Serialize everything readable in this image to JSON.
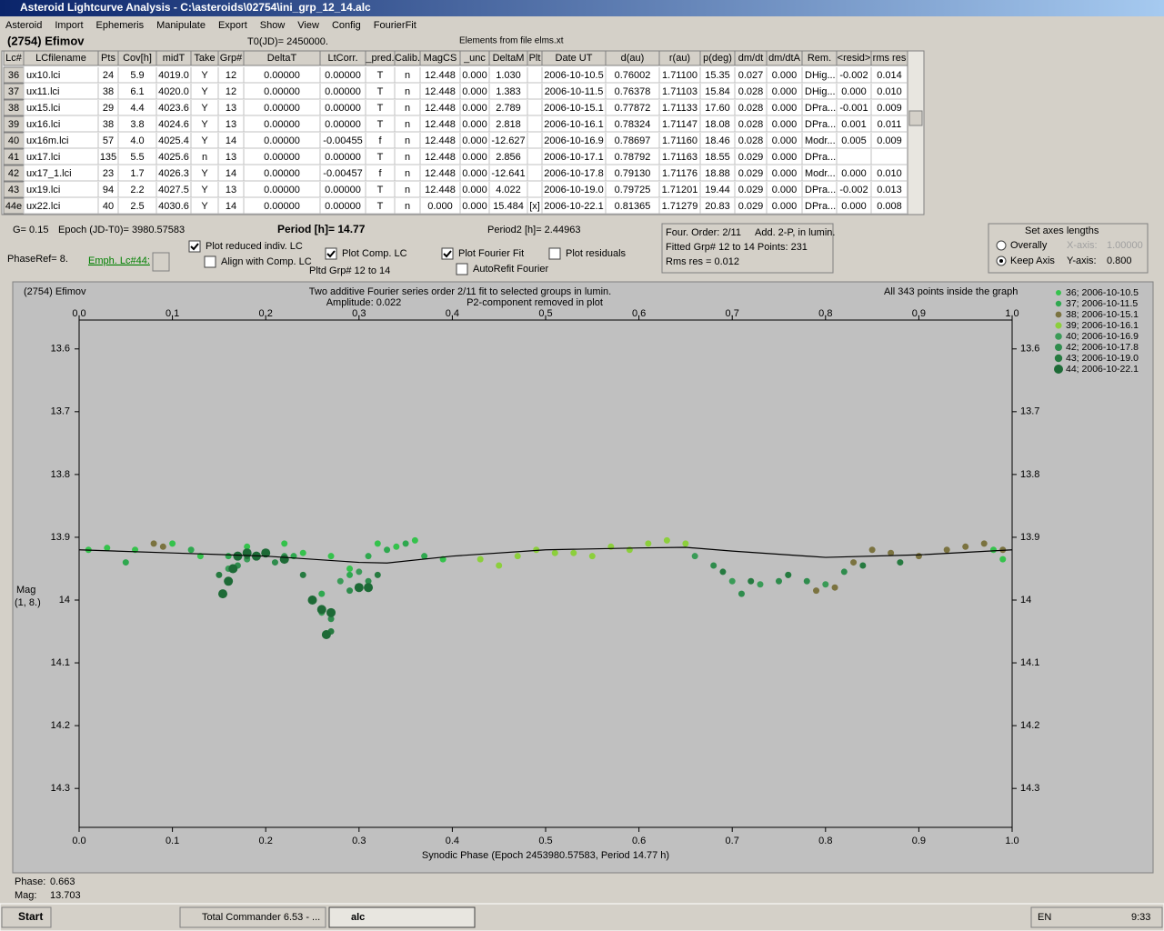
{
  "window": {
    "title": "Asteroid Lightcurve Analysis - C:\\asteroids\\02754\\ini_grp_12_14.alc"
  },
  "menu": [
    "Asteroid",
    "Import",
    "Ephemeris",
    "Manipulate",
    "Export",
    "Show",
    "View",
    "Config",
    "FourierFit"
  ],
  "header": {
    "object": "(2754) Efimov",
    "t0": "T0(JD)= 2450000.",
    "elements": "Elements from file elms.xt"
  },
  "table": {
    "columns": [
      "Lc#",
      "LCfilename",
      "Pts",
      "Cov[h]",
      "midT",
      "Take",
      "Grp#",
      "DeltaT",
      "LtCorr.",
      "_pred.",
      "Calib.",
      "MagCS",
      "_unc",
      "DeltaM",
      "Plt",
      "Date UT",
      "d(au)",
      "r(au)",
      "p(deg)",
      "dm/dt",
      "dm/dtA",
      "Rem.",
      "<resid>",
      "rms res"
    ],
    "rows": [
      [
        "36",
        "ux10.lci",
        "24",
        "5.9",
        "4019.0",
        "Y",
        "12",
        "0.00000",
        "0.00000",
        "T",
        "n",
        "12.448",
        "0.000",
        "1.030",
        null,
        "2006-10-10.5",
        "0.76002",
        "1.71100",
        "15.35",
        "0.027",
        "0.000",
        "DHig...",
        "-0.002",
        "0.014"
      ],
      [
        "37",
        "ux11.lci",
        "38",
        "6.1",
        "4020.0",
        "Y",
        "12",
        "0.00000",
        "0.00000",
        "T",
        "n",
        "12.448",
        "0.000",
        "1.383",
        null,
        "2006-10-11.5",
        "0.76378",
        "1.71103",
        "15.84",
        "0.028",
        "0.000",
        "DHig...",
        "0.000",
        "0.010"
      ],
      [
        "38",
        "ux15.lci",
        "29",
        "4.4",
        "4023.6",
        "Y",
        "13",
        "0.00000",
        "0.00000",
        "T",
        "n",
        "12.448",
        "0.000",
        "2.789",
        null,
        "2006-10-15.1",
        "0.77872",
        "1.71133",
        "17.60",
        "0.028",
        "0.000",
        "DPra...",
        "-0.001",
        "0.009"
      ],
      [
        "39",
        "ux16.lci",
        "38",
        "3.8",
        "4024.6",
        "Y",
        "13",
        "0.00000",
        "0.00000",
        "T",
        "n",
        "12.448",
        "0.000",
        "2.818",
        null,
        "2006-10-16.1",
        "0.78324",
        "1.71147",
        "18.08",
        "0.028",
        "0.000",
        "DPra...",
        "0.001",
        "0.011"
      ],
      [
        "40",
        "ux16m.lci",
        "57",
        "4.0",
        "4025.4",
        "Y",
        "14",
        "0.00000",
        "-0.00455",
        "f",
        "n",
        "12.448",
        "0.000",
        "-12.627",
        null,
        "2006-10-16.9",
        "0.78697",
        "1.71160",
        "18.46",
        "0.028",
        "0.000",
        "Modr...",
        "0.005",
        "0.009"
      ],
      [
        "41",
        "ux17.lci",
        "135",
        "5.5",
        "4025.6",
        "n",
        "13",
        "0.00000",
        "0.00000",
        "T",
        "n",
        "12.448",
        "0.000",
        "2.856",
        null,
        "2006-10-17.1",
        "0.78792",
        "1.71163",
        "18.55",
        "0.029",
        "0.000",
        "DPra...",
        null,
        null
      ],
      [
        "42",
        "ux17_1.lci",
        "23",
        "1.7",
        "4026.3",
        "Y",
        "14",
        "0.00000",
        "-0.00457",
        "f",
        "n",
        "12.448",
        "0.000",
        "-12.641",
        null,
        "2006-10-17.8",
        "0.79130",
        "1.71176",
        "18.88",
        "0.029",
        "0.000",
        "Modr...",
        "0.000",
        "0.010"
      ],
      [
        "43",
        "ux19.lci",
        "94",
        "2.2",
        "4027.5",
        "Y",
        "13",
        "0.00000",
        "0.00000",
        "T",
        "n",
        "12.448",
        "0.000",
        "4.022",
        null,
        "2006-10-19.0",
        "0.79725",
        "1.71201",
        "19.44",
        "0.029",
        "0.000",
        "DPra...",
        "-0.002",
        "0.013"
      ],
      [
        "44e",
        "ux22.lci",
        "40",
        "2.5",
        "4030.6",
        "Y",
        "14",
        "0.00000",
        "0.00000",
        "T",
        "n",
        "0.000",
        "0.000",
        "15.484",
        "[x]",
        "2006-10-22.1",
        "0.81365",
        "1.71279",
        "20.83",
        "0.029",
        "0.000",
        "DPra...",
        "0.000",
        "0.008"
      ]
    ]
  },
  "info": {
    "g": "G= 0.15",
    "epoch": "Epoch (JD-T0)= 3980.57583",
    "period": "Period [h]= 14.77",
    "period2": "Period2 [h]= 2.44963",
    "phaseref": "PhaseRef= 8.",
    "emph": "Emph. Lc#44:",
    "pltd": "Pltd Grp#  12 to  14"
  },
  "checkboxes": [
    {
      "label": "Plot reduced indiv. LC",
      "checked": true
    },
    {
      "label": "Align with Comp. LC",
      "checked": false
    },
    {
      "label": "Plot Comp. LC",
      "checked": true
    },
    {
      "label": "Plot Fourier Fit",
      "checked": true
    },
    {
      "label": "Plot residuals",
      "checked": false
    },
    {
      "label": "AutoRefit Fourier",
      "checked": false
    }
  ],
  "fourier": [
    "Four. Order:  2/11",
    "Add. 2-P, in lumin.",
    "Fitted Grp# 12 to 14 Points: 231",
    "Rms res      = 0.012"
  ],
  "axes_box": {
    "title": "Set axes lengths",
    "radios": [
      {
        "label": "Overally",
        "checked": false
      },
      {
        "label": "Keep Axis",
        "checked": true
      }
    ],
    "x_label": "X-axis:",
    "x_value": "1.00000",
    "y_label": "Y-axis:",
    "y_value": "0.800"
  },
  "chart_data": {
    "type": "scatter",
    "object": "(2754) Efimov",
    "subtitle": [
      "Two additive Fourier series order 2/11 fit to selected groups in lumin.",
      "Amplitude: 0.022",
      "P2-component removed in plot"
    ],
    "note": "All 343 points inside the graph",
    "x_label": "Synodic Phase (Epoch 2453980.57583, Period 14.77 h)",
    "y_label": "Mag",
    "y_label2": "(1, 8.)",
    "xlim": [
      0,
      1
    ],
    "xticks": [
      {
        "value": 0,
        "label": "0.0"
      },
      0.1,
      0.2,
      0.3,
      0.4,
      0.5,
      0.6,
      0.7,
      0.8,
      0.9,
      {
        "value": 1,
        "label": "1.0"
      }
    ],
    "ylim": [
      14.362,
      13.554
    ],
    "yticks": [
      13.6,
      13.7,
      13.8,
      13.9,
      14.0,
      14.1,
      14.2,
      14.3
    ],
    "series": [
      {
        "name": "36; 2006-10-10.5",
        "color": "#35c24c",
        "x": [
          0.01,
          0.03,
          0.06,
          0.1,
          0.13,
          0.18,
          0.22,
          0.24,
          0.27,
          0.29,
          0.32,
          0.34,
          0.36,
          0.39,
          0.98,
          0.99
        ],
        "values": [
          13.92,
          13.917,
          13.92,
          13.91,
          13.93,
          13.915,
          13.91,
          13.925,
          13.93,
          13.95,
          13.91,
          13.915,
          13.905,
          13.935,
          13.92,
          13.935
        ]
      },
      {
        "name": "37; 2006-10-11.5",
        "color": "#2fa84f",
        "x": [
          0.05,
          0.12,
          0.16,
          0.2,
          0.23,
          0.26,
          0.29,
          0.31,
          0.33,
          0.35,
          0.37
        ],
        "values": [
          13.94,
          13.92,
          13.93,
          13.925,
          13.93,
          13.99,
          13.96,
          13.93,
          13.92,
          13.91,
          13.93
        ]
      },
      {
        "name": "38; 2006-10-15.1",
        "color": "#7b7340",
        "x": [
          0.08,
          0.09,
          0.79,
          0.81,
          0.83,
          0.85,
          0.87,
          0.9,
          0.93,
          0.95,
          0.97,
          0.99
        ],
        "values": [
          13.91,
          13.915,
          13.985,
          13.98,
          13.94,
          13.92,
          13.925,
          13.93,
          13.92,
          13.915,
          13.91,
          13.92
        ]
      },
      {
        "name": "39; 2006-10-16.1",
        "color": "#8ccf3c",
        "x": [
          0.43,
          0.45,
          0.47,
          0.49,
          0.51,
          0.53,
          0.55,
          0.57,
          0.59,
          0.61,
          0.63,
          0.65
        ],
        "values": [
          13.935,
          13.945,
          13.93,
          13.92,
          13.925,
          13.925,
          13.93,
          13.915,
          13.92,
          13.91,
          13.905,
          13.91
        ]
      },
      {
        "name": "40; 2006-10-16.9",
        "color": "#3a9b57",
        "x": [
          0.16,
          0.18,
          0.2,
          0.22,
          0.26,
          0.28,
          0.3,
          0.66,
          0.7,
          0.73,
          0.76,
          0.8
        ],
        "values": [
          13.95,
          13.935,
          13.925,
          13.93,
          14.02,
          13.97,
          13.955,
          13.93,
          13.97,
          13.975,
          13.96,
          13.975
        ]
      },
      {
        "name": "42; 2006-10-17.8",
        "color": "#2f8c4d",
        "x": [
          0.17,
          0.19,
          0.21,
          0.25,
          0.27,
          0.29,
          0.31,
          0.68,
          0.71,
          0.75,
          0.78,
          0.82
        ],
        "values": [
          13.945,
          13.93,
          13.94,
          14.0,
          14.03,
          13.985,
          13.97,
          13.945,
          13.99,
          13.97,
          13.97,
          13.955
        ]
      },
      {
        "name": "43; 2006-10-19.0",
        "color": "#267a40",
        "x": [
          0.15,
          0.18,
          0.22,
          0.24,
          0.27,
          0.3,
          0.32,
          0.69,
          0.72,
          0.76,
          0.84,
          0.88
        ],
        "values": [
          13.96,
          13.93,
          13.935,
          13.96,
          14.05,
          13.98,
          13.96,
          13.955,
          13.97,
          13.96,
          13.945,
          13.94
        ]
      },
      {
        "name": "44; 2006-10-22.1",
        "color": "#1d6a36",
        "x": [
          0.154,
          0.16,
          0.165,
          0.17,
          0.18,
          0.19,
          0.2,
          0.22,
          0.25,
          0.26,
          0.265,
          0.27,
          0.3,
          0.31
        ],
        "values": [
          13.99,
          13.97,
          13.95,
          13.93,
          13.925,
          13.93,
          13.925,
          13.935,
          14.0,
          14.015,
          14.055,
          14.02,
          13.98,
          13.98
        ]
      }
    ],
    "fit": {
      "color": "#000000",
      "x": [
        0,
        0.1,
        0.2,
        0.3,
        0.33,
        0.4,
        0.5,
        0.6,
        0.65,
        0.7,
        0.8,
        0.9,
        1
      ],
      "values": [
        13.92,
        13.925,
        13.93,
        13.94,
        13.941,
        13.93,
        13.92,
        13.917,
        13.916,
        13.922,
        13.932,
        13.928,
        13.92
      ]
    }
  },
  "status": {
    "phase_label": "Phase:",
    "phase": "0.663",
    "mag_label": "Mag:",
    "mag": "13.703"
  },
  "taskbar": {
    "start": "Start",
    "tasks": [
      "Total Commander 6.53 - ...",
      "alc"
    ],
    "lang": "EN",
    "clock": "9:33"
  }
}
